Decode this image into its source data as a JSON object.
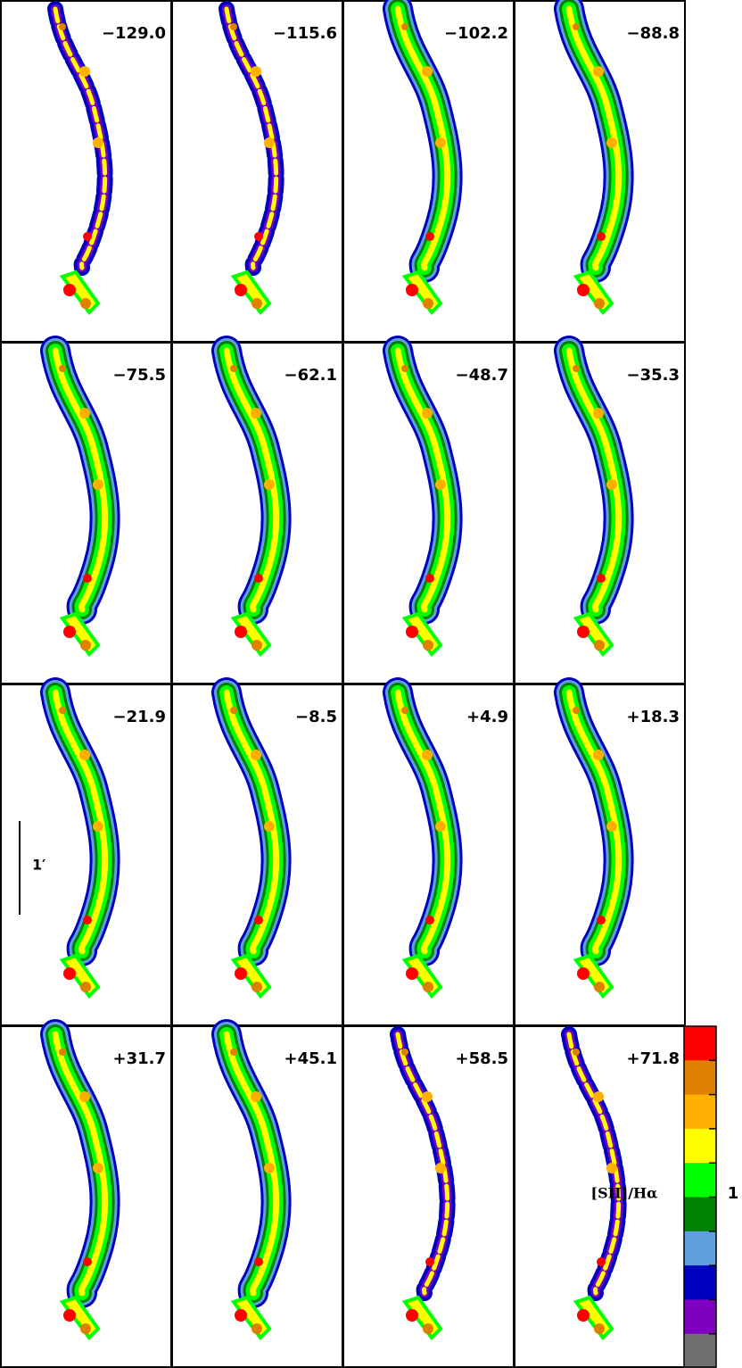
{
  "panels": [
    {
      "label": "−129.0"
    },
    {
      "label": "−115.6"
    },
    {
      "label": "−102.2"
    },
    {
      "label": "−88.8"
    },
    {
      "label": "−75.5"
    },
    {
      "label": "−62.1"
    },
    {
      "label": "−48.7"
    },
    {
      "label": "−35.3"
    },
    {
      "label": "−21.9"
    },
    {
      "label": "−8.5"
    },
    {
      "label": "+4.9"
    },
    {
      "label": "+18.3"
    },
    {
      "label": "+31.7"
    },
    {
      "label": "+45.1"
    },
    {
      "label": "+58.5"
    },
    {
      "label": "+71.8"
    }
  ],
  "scale_bar": {
    "label": "1′"
  },
  "colorbar": {
    "label": "[SII]/Hα",
    "tick_label": "1",
    "colors": [
      "#ff0000",
      "#e08000",
      "#ffb000",
      "#ffff00",
      "#00ff00",
      "#008000",
      "#60a0e0",
      "#0000c0",
      "#8000c0",
      "#707070"
    ]
  }
}
